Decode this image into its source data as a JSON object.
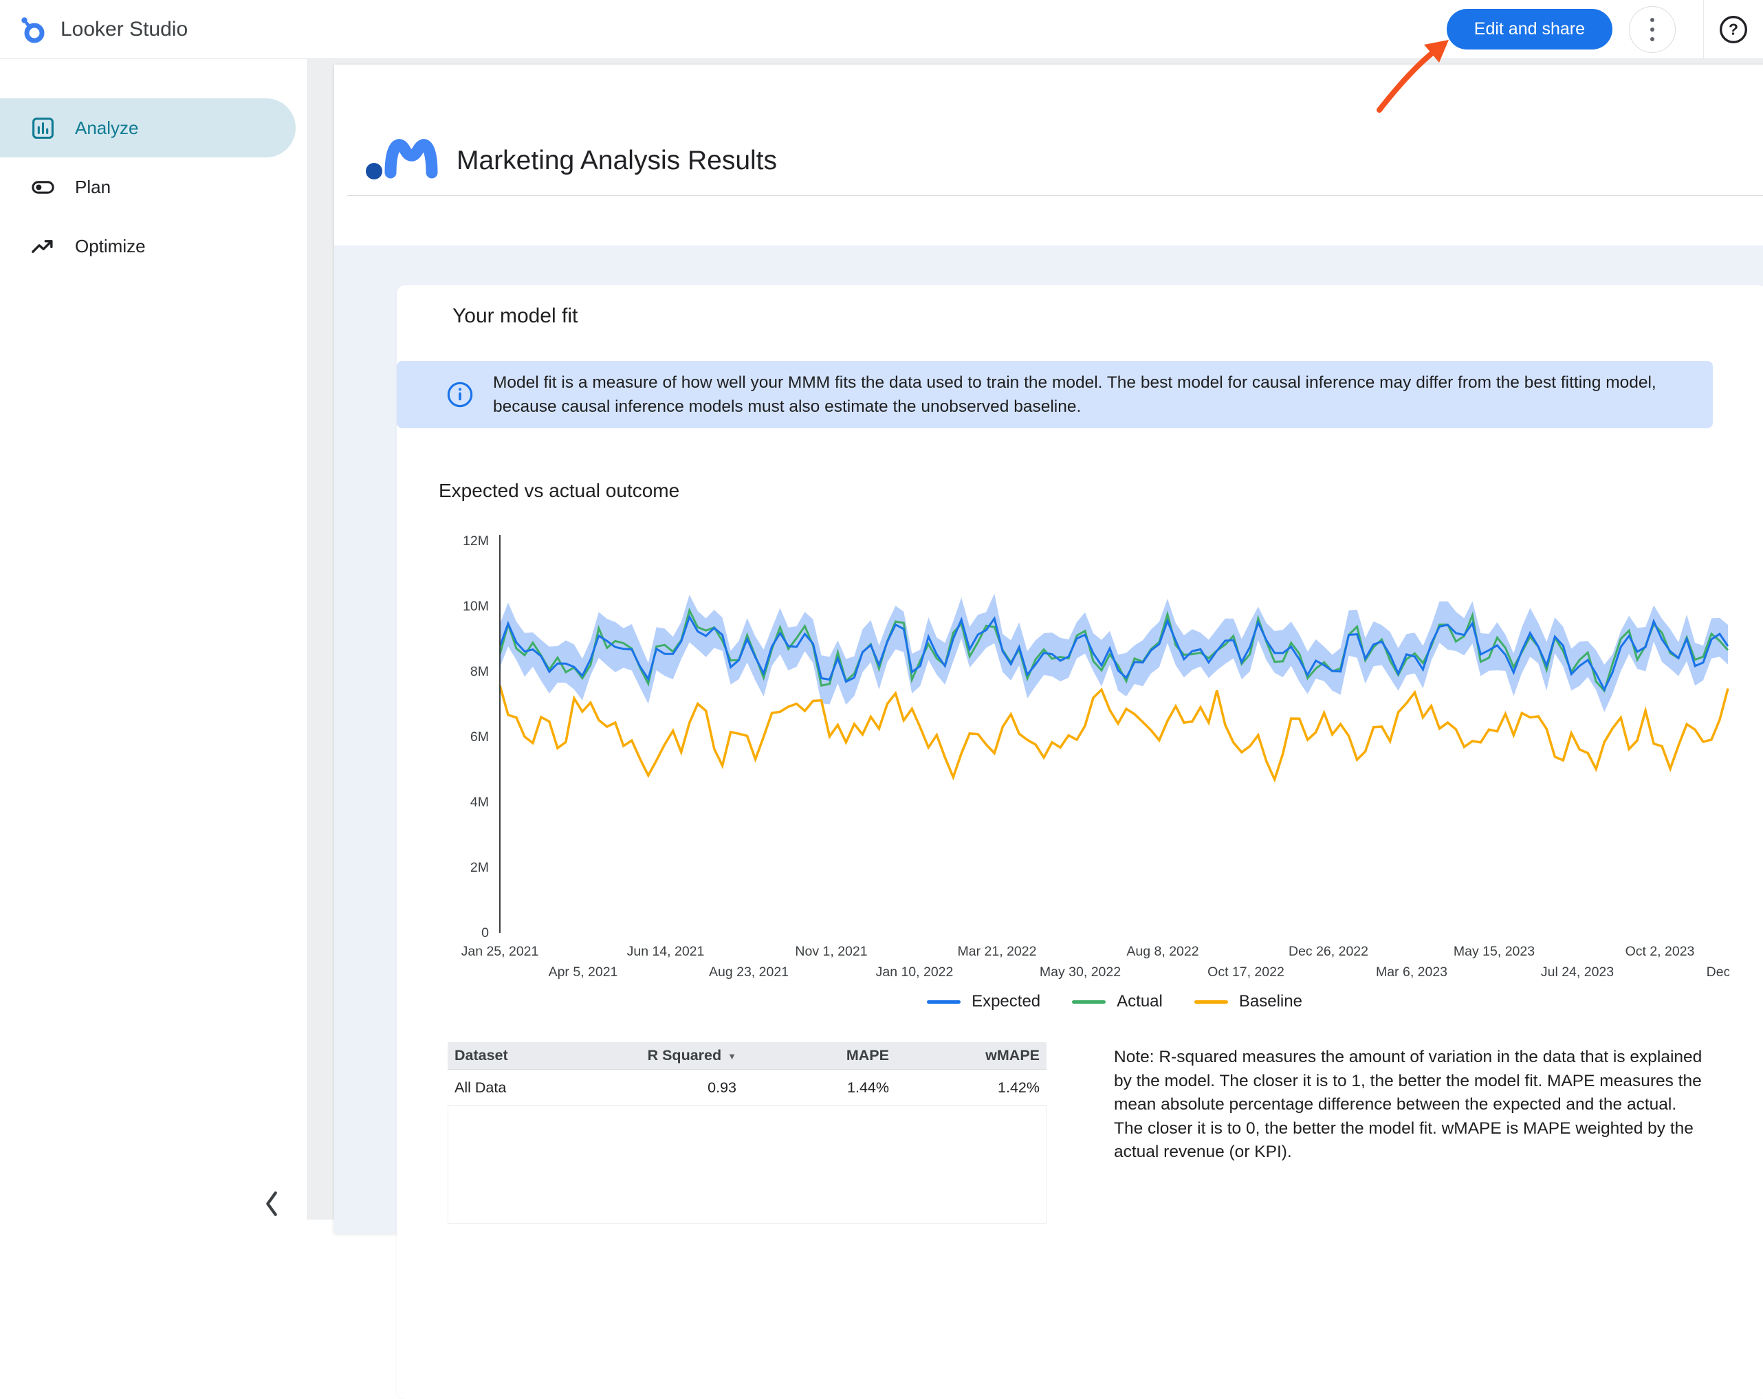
{
  "topbar": {
    "app_name": "Looker Studio",
    "edit_share_button": "Edit and share"
  },
  "sidebar": {
    "items": [
      {
        "label": "Analyze",
        "selected": true
      },
      {
        "label": "Plan",
        "selected": false
      },
      {
        "label": "Optimize",
        "selected": false
      }
    ]
  },
  "report": {
    "title": "Marketing Analysis Results",
    "model_fit_card": {
      "title": "Your model fit",
      "info_text": "Model fit is a measure of how well your MMM fits the data used to train the model. The best model for causal inference may differ from the best fitting model, because causal inference models must also estimate the unobserved baseline.",
      "chart_title": "Expected vs actual outcome",
      "note": "Note: R-squared measures the amount of variation in the data that is explained by the model. The closer it is to 1, the better the model fit. MAPE measures the mean absolute percentage difference between the expected and the actual. The closer it is to 0, the better the model fit. wMAPE is MAPE weighted by the actual revenue (or KPI)."
    }
  },
  "chart_data": {
    "type": "line",
    "title": "Expected vs actual outcome",
    "ylim": [
      0,
      12000000
    ],
    "y_tick_labels": [
      "0",
      "2M",
      "4M",
      "6M",
      "8M",
      "10M",
      "12M"
    ],
    "x_tick_labels_row1": [
      "Jan 25, 2021",
      "Jun 14, 2021",
      "Nov 1, 2021",
      "Mar 21, 2022",
      "Aug 8, 2022",
      "Dec 26, 2022",
      "May 15, 2023",
      "Oct 2, 2023"
    ],
    "x_tick_labels_row2": [
      "Apr 5, 2021",
      "Aug 23, 2021",
      "Jan 10, 2022",
      "May 30, 2022",
      "Oct 17, 2022",
      "Mar 6, 2023",
      "Jul 24, 2023",
      "Dec"
    ],
    "legend": [
      "Expected",
      "Actual",
      "Baseline"
    ],
    "series": [
      {
        "name": "Expected",
        "color": "#1a73e8",
        "approx_mean": 8600000,
        "approx_range": [
          7150000,
          9900000
        ]
      },
      {
        "name": "Actual",
        "color": "#3fae68",
        "approx_mean": 8600000,
        "approx_range": [
          7000000,
          10000000
        ]
      },
      {
        "name": "Baseline",
        "color": "#f9ab00",
        "approx_mean": 6200000,
        "approx_range": [
          4700000,
          8100000
        ]
      }
    ],
    "confidence_band": {
      "series": "Expected",
      "color": "#a8c7fa",
      "approx_halfwidth": 600000
    },
    "n_points": 150,
    "grid": false,
    "legend_position": "bottom"
  },
  "table": {
    "headers": [
      "Dataset",
      "R Squared",
      "MAPE",
      "wMAPE"
    ],
    "sort_column": "R Squared",
    "rows": [
      [
        "All Data",
        "0.93",
        "1.44%",
        "1.42%"
      ]
    ]
  },
  "annotation": {
    "type": "arrow",
    "color": "#f4511e",
    "points_to": "Edit and share"
  },
  "colors": {
    "accent_blue": "#1a73e8",
    "nav_selected_bg": "#d4e7ee",
    "nav_selected_text": "#0f7b93",
    "info_banner_bg": "#d3e3fd",
    "report_body_bg": "#edf2f8"
  }
}
